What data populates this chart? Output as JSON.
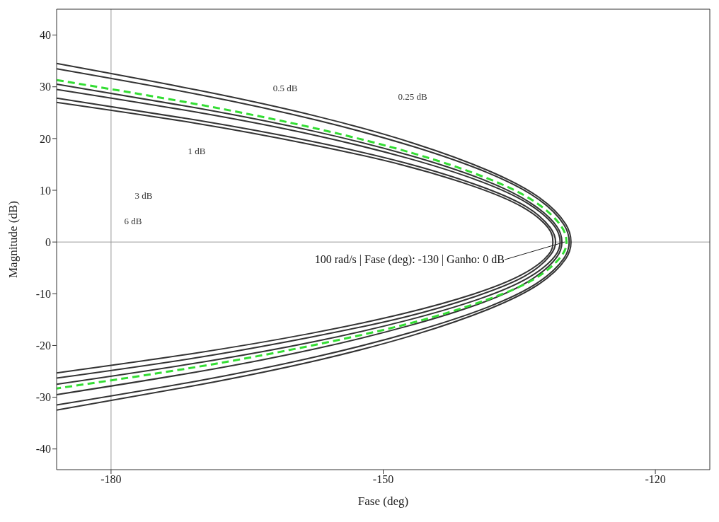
{
  "chart_data": {
    "type": "line",
    "xlabel": "Fase (deg)",
    "ylabel": "Magnitude (dB)",
    "xlim": [
      -186,
      -114
    ],
    "ylim": [
      -44,
      45
    ],
    "xticks": [
      -180,
      -150,
      -120
    ],
    "yticks": [
      -40,
      -30,
      -20,
      -10,
      0,
      10,
      20,
      30,
      40
    ],
    "marker": "none",
    "series": [
      {
        "color": "#333333",
        "line_style": "solid",
        "x": [
          -186,
          -170.3,
          -157.1,
          -146.5,
          -138.4,
          -132.8,
          -129.9,
          -129.3,
          -129.9,
          -132.8,
          -138.4,
          -146.5,
          -157.1,
          -170.3,
          -186
        ],
        "values": [
          34.5,
          29.3,
          24.2,
          19.0,
          13.8,
          8.6,
          3.5,
          0,
          -3.3,
          -8.1,
          -13.0,
          -17.9,
          -22.8,
          -27.6,
          -32.5
        ]
      },
      {
        "color": "#333333",
        "line_style": "solid",
        "x": [
          -186,
          -170.3,
          -157.2,
          -146.6,
          -138.5,
          -133.0,
          -130.1,
          -129.5,
          -130.1,
          -133.0,
          -138.5,
          -146.6,
          -157.2,
          -170.3,
          -186
        ],
        "values": [
          33.5,
          28.5,
          23.5,
          18.4,
          13.4,
          8.4,
          3.4,
          0,
          -3.2,
          -7.9,
          -12.6,
          -17.3,
          -22.1,
          -26.8,
          -31.5
        ]
      },
      {
        "color": "#333333",
        "line_style": "solid",
        "x": [
          -186,
          -170.5,
          -157.6,
          -147.2,
          -139.2,
          -133.8,
          -130.9,
          -130.3,
          -130.9,
          -133.8,
          -139.2,
          -147.2,
          -157.6,
          -170.5,
          -186
        ],
        "values": [
          30.5,
          25.9,
          21.4,
          16.8,
          12.2,
          7.6,
          3.1,
          0,
          -3.0,
          -7.4,
          -11.8,
          -16.2,
          -20.7,
          -25.1,
          -29.5
        ]
      },
      {
        "color": "#333333",
        "line_style": "solid",
        "x": [
          -186,
          -170.6,
          -157.7,
          -147.3,
          -139.4,
          -134.0,
          -131.1,
          -130.5,
          -131.1,
          -134.0,
          -139.4,
          -147.3,
          -157.7,
          -170.6,
          -186
        ],
        "values": [
          29.5,
          25.1,
          20.7,
          16.2,
          11.8,
          7.4,
          3.0,
          0,
          -2.8,
          -6.9,
          -11.0,
          -15.1,
          -19.3,
          -23.4,
          -27.5
        ]
      },
      {
        "color": "#333333",
        "line_style": "solid",
        "x": [
          -186,
          -170.7,
          -158.0,
          -147.6,
          -139.8,
          -134.4,
          -131.6,
          -131,
          -131.6,
          -134.4,
          -139.8,
          -147.6,
          -158.0,
          -170.7,
          -186
        ],
        "values": [
          27.8,
          23.6,
          19.5,
          15.3,
          11.1,
          7.0,
          2.8,
          0,
          -2.6,
          -6.6,
          -10.5,
          -14.5,
          -18.4,
          -22.4,
          -26.3
        ]
      },
      {
        "color": "#333333",
        "line_style": "solid",
        "x": [
          -186,
          -170.8,
          -158.1,
          -147.9,
          -140.1,
          -134.7,
          -131.8,
          -131.3,
          -131.8,
          -134.7,
          -140.1,
          -147.9,
          -158.1,
          -170.8,
          -186
        ],
        "values": [
          27.0,
          23.0,
          18.9,
          14.9,
          10.8,
          6.8,
          2.7,
          0,
          -2.5,
          -6.3,
          -10.1,
          -13.9,
          -17.7,
          -21.5,
          -25.3
        ]
      },
      {
        "color": "#33dd33",
        "line_style": "dashed",
        "x": [
          -186,
          -170.4,
          -157.3,
          -146.8,
          -138.8,
          -133.3,
          -130.4,
          -129.8,
          -130.4,
          -133.3,
          -138.8,
          -146.8,
          -157.3,
          -170.4,
          -186
        ],
        "values": [
          31.3,
          26.6,
          21.9,
          17.2,
          12.5,
          7.8,
          3.1,
          0,
          -2.8,
          -7.1,
          -11.3,
          -15.6,
          -19.8,
          -24.1,
          -28.3
        ]
      }
    ],
    "ref_lines": [
      {
        "axis": "x",
        "value": -180,
        "color": "#999999"
      },
      {
        "axis": "y",
        "value": 0,
        "color": "#999999"
      }
    ],
    "annotations": [
      {
        "text": "100 rad/s | Fase (deg): -130 | Ganho: 0 dB",
        "x": -130,
        "y": 0
      },
      "0.25 dB",
      "0.5 dB",
      "1 dB",
      "3 dB",
      "6 dB"
    ]
  }
}
